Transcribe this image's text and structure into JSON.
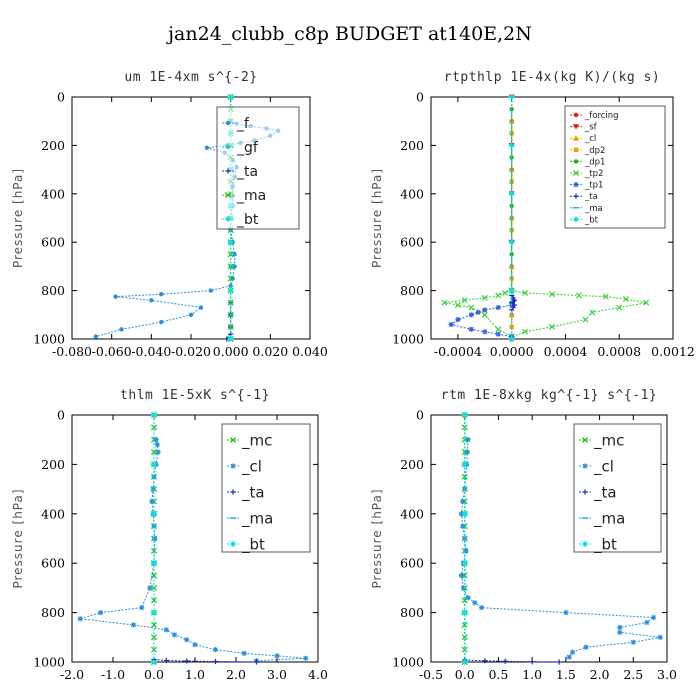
{
  "figure_title": "jan24_clubb_c8p  BUDGET at140E,2N",
  "chart_data": [
    {
      "type": "line",
      "title": "um  1E-4xm s^{-2}",
      "ylabel": "Pressure [hPa]",
      "xlim": [
        -0.08,
        0.04
      ],
      "ylim": [
        1000,
        0
      ],
      "xticks": [
        "-0.080",
        "-0.060",
        "-0.040",
        "-0.020",
        "0.000",
        "0.020",
        "0.040"
      ],
      "yticks": [
        "0",
        "200",
        "400",
        "600",
        "800",
        "1000"
      ],
      "legend_position": "top-right",
      "legend_font": "large",
      "series": [
        {
          "name": "_f",
          "color": "#2a8fe0",
          "marker": "circle",
          "x": [
            0,
            0.003,
            0.01,
            0.018,
            0.024,
            0.02,
            0.012,
            0.005,
            -0.002,
            -0.012,
            -0.003,
            0.001,
            0.003,
            0.002,
            0.001,
            0.001,
            0.001,
            0,
            0,
            0.001,
            0.002,
            0.002,
            0.001,
            0,
            -0.01,
            -0.035,
            -0.058,
            -0.04,
            -0.015,
            -0.02,
            -0.035,
            -0.055,
            -0.068
          ],
          "y": [
            100,
            110,
            120,
            130,
            140,
            160,
            180,
            190,
            200,
            210,
            230,
            260,
            290,
            330,
            370,
            410,
            450,
            500,
            550,
            600,
            650,
            700,
            750,
            780,
            800,
            815,
            825,
            840,
            870,
            900,
            930,
            960,
            990
          ]
        },
        {
          "name": "_gf",
          "color": "#22c8d0",
          "marker": "circle",
          "x": [
            0,
            0,
            0,
            0,
            0,
            0,
            0,
            0,
            0,
            0,
            0,
            0
          ],
          "y": [
            0,
            100,
            200,
            300,
            400,
            500,
            600,
            700,
            800,
            900,
            950,
            1000
          ]
        },
        {
          "name": "_ta",
          "color": "#1a30b0",
          "marker": "plus",
          "x": [
            0,
            0,
            0,
            0,
            -0.002
          ],
          "y": [
            850,
            900,
            950,
            980,
            1000
          ]
        },
        {
          "name": "_ma",
          "color": "#1ec01e",
          "marker": "x",
          "x": [
            0,
            0,
            0,
            0,
            0,
            0,
            0,
            0,
            0,
            0,
            0,
            0,
            0,
            0,
            0,
            0,
            0,
            0,
            0,
            0,
            0
          ],
          "y": [
            0,
            50,
            100,
            150,
            200,
            250,
            300,
            350,
            400,
            450,
            500,
            550,
            600,
            650,
            700,
            750,
            800,
            850,
            900,
            950,
            1000
          ]
        },
        {
          "name": "_bt",
          "color": "#00e5e5",
          "marker": "diamond",
          "x": [
            0,
            0,
            0,
            0,
            0,
            0,
            0
          ],
          "y": [
            0,
            150,
            300,
            450,
            600,
            800,
            1000
          ]
        }
      ]
    },
    {
      "type": "line",
      "title": "rtpthlp  1E-4x(kg K)/(kg s)",
      "ylabel": "Pressure [hPa]",
      "xlim": [
        -0.0006,
        0.0012
      ],
      "ylim": [
        1000,
        0
      ],
      "xticks": [
        "-0.0004",
        "0.0000",
        "0.0004",
        "0.0008",
        "0.0012"
      ],
      "yticks": [
        "0",
        "200",
        "400",
        "600",
        "800",
        "1000"
      ],
      "legend_position": "top-right",
      "legend_font": "small",
      "series": [
        {
          "name": "_forcing",
          "color": "#e02020",
          "marker": "circle",
          "x": [
            0,
            0,
            0,
            0,
            0,
            0,
            0,
            0,
            0,
            0,
            0
          ],
          "y": [
            0,
            100,
            200,
            300,
            400,
            500,
            600,
            700,
            800,
            900,
            1000
          ]
        },
        {
          "name": "_sf",
          "color": "#e02020",
          "marker": "triangle-down",
          "x": [
            0,
            0,
            0,
            0,
            0,
            0
          ],
          "y": [
            0,
            200,
            400,
            600,
            800,
            1000
          ]
        },
        {
          "name": "_cl",
          "color": "#f0a000",
          "marker": "triangle-up",
          "x": [
            0,
            0,
            0,
            0,
            0,
            0
          ],
          "y": [
            100,
            300,
            500,
            700,
            900,
            1000
          ]
        },
        {
          "name": "_dp2",
          "color": "#f0a000",
          "marker": "square",
          "x": [
            0,
            0,
            0,
            0,
            0
          ],
          "y": [
            150,
            350,
            550,
            750,
            950
          ]
        },
        {
          "name": "_dp1",
          "color": "#20b020",
          "marker": "circle",
          "x": [
            0,
            0,
            0,
            0,
            0
          ],
          "y": [
            50,
            250,
            450,
            650,
            850
          ]
        },
        {
          "name": "_tp2",
          "color": "#40d040",
          "marker": "x",
          "x": [
            0,
            0.0001,
            0.0003,
            0.0005,
            0.0007,
            0.00085,
            0.001,
            0.0008,
            0.0006,
            0.00055,
            0.0003,
            0.0001,
            0,
            -0.0001,
            -0.0002,
            -0.0003,
            -0.0004,
            -0.0005,
            -0.00035,
            -0.0002,
            -0.0001,
            -5e-05,
            0
          ],
          "y": [
            800,
            810,
            815,
            820,
            825,
            835,
            850,
            870,
            890,
            920,
            950,
            970,
            990,
            960,
            900,
            870,
            860,
            850,
            840,
            830,
            820,
            810,
            800
          ]
        },
        {
          "name": "_tp1",
          "color": "#3060e0",
          "marker": "star",
          "x": [
            0,
            -0.0001,
            -0.0002,
            -0.00025,
            -0.0003,
            -0.0004,
            -0.00045,
            -0.0003,
            -0.0002,
            -0.0001,
            0
          ],
          "y": [
            860,
            870,
            880,
            890,
            900,
            920,
            940,
            960,
            970,
            980,
            990
          ]
        },
        {
          "name": "_ta",
          "color": "#2020c0",
          "marker": "plus",
          "x": [
            0,
            1e-05,
            2e-05,
            1e-05,
            0,
            2e-05,
            1e-05,
            0
          ],
          "y": [
            820,
            830,
            840,
            845,
            850,
            860,
            870,
            880
          ]
        },
        {
          "name": "_ma",
          "color": "#20a0e0",
          "marker": "dash",
          "x": [
            0,
            0,
            0,
            0,
            0,
            0
          ],
          "y": [
            0,
            200,
            400,
            600,
            800,
            1000
          ]
        },
        {
          "name": "_bt",
          "color": "#00e5e5",
          "marker": "diamond",
          "x": [
            0,
            0,
            0,
            0,
            0,
            0
          ],
          "y": [
            0,
            200,
            400,
            600,
            800,
            1000
          ]
        }
      ]
    },
    {
      "type": "line",
      "title": "thlm  1E-5xK s^{-1}",
      "ylabel": "Pressure [hPa]",
      "xlim": [
        -2.0,
        4.0
      ],
      "ylim": [
        1000,
        0
      ],
      "xticks": [
        "-2.0",
        "-1.0",
        "0.0",
        "1.0",
        "2.0",
        "3.0",
        "4.0"
      ],
      "yticks": [
        "0",
        "200",
        "400",
        "600",
        "800",
        "1000"
      ],
      "legend_position": "top-right",
      "legend_font": "large",
      "series": [
        {
          "name": "_mc",
          "color": "#1ec01e",
          "marker": "x",
          "x": [
            0,
            0,
            0,
            0,
            0,
            0,
            0,
            0,
            0,
            0,
            0,
            0,
            0,
            0,
            0,
            0,
            0,
            0,
            0,
            0,
            0
          ],
          "y": [
            0,
            50,
            100,
            150,
            200,
            250,
            300,
            350,
            400,
            450,
            500,
            550,
            600,
            650,
            700,
            750,
            800,
            850,
            900,
            950,
            1000
          ]
        },
        {
          "name": "_cl",
          "color": "#2a8fe0",
          "marker": "star",
          "x": [
            0.05,
            0.08,
            0.1,
            0.05,
            0.0,
            -0.02,
            -0.05,
            -0.02,
            0,
            0.02,
            0.0,
            -0.1,
            -0.3,
            -1.3,
            -1.8,
            -0.5,
            0.3,
            0.5,
            0.8,
            1.0,
            1.5,
            2.2,
            3.0,
            3.7,
            2.5
          ],
          "y": [
            100,
            120,
            150,
            200,
            250,
            300,
            350,
            400,
            450,
            500,
            600,
            700,
            780,
            800,
            825,
            850,
            870,
            890,
            910,
            930,
            950,
            965,
            975,
            985,
            995
          ]
        },
        {
          "name": "_ta",
          "color": "#1a30b0",
          "marker": "plus",
          "x": [
            0,
            0.3,
            0.8,
            1.5,
            2.5
          ],
          "y": [
            990,
            994,
            996,
            998,
            1000
          ]
        },
        {
          "name": "_ma",
          "color": "#20a0e0",
          "marker": "dash",
          "x": [
            0,
            0,
            0,
            0,
            0,
            0
          ],
          "y": [
            0,
            200,
            400,
            600,
            800,
            1000
          ]
        },
        {
          "name": "_bt",
          "color": "#00e5e5",
          "marker": "diamond",
          "x": [
            0,
            0,
            0,
            0,
            0,
            0
          ],
          "y": [
            0,
            200,
            400,
            600,
            800,
            1000
          ]
        }
      ]
    },
    {
      "type": "line",
      "title": "rtm  1E-8xkg kg^{-1} s^{-1}",
      "ylabel": "Pressure [hPa]",
      "xlim": [
        -0.5,
        3.0
      ],
      "ylim": [
        1000,
        0
      ],
      "xticks": [
        "-0.5",
        "0.0",
        "0.5",
        "1.0",
        "1.5",
        "2.0",
        "2.5",
        "3.0"
      ],
      "yticks": [
        "0",
        "200",
        "400",
        "600",
        "800",
        "1000"
      ],
      "legend_position": "top-right",
      "legend_font": "large",
      "series": [
        {
          "name": "_mc",
          "color": "#1ec01e",
          "marker": "x",
          "x": [
            0,
            0,
            0,
            0,
            0,
            0,
            0,
            0,
            0,
            0,
            0,
            0,
            0,
            0,
            0,
            0,
            0,
            0,
            0,
            0,
            0
          ],
          "y": [
            0,
            50,
            100,
            150,
            200,
            250,
            300,
            350,
            400,
            450,
            500,
            550,
            600,
            650,
            700,
            750,
            800,
            850,
            900,
            950,
            1000
          ]
        },
        {
          "name": "_cl",
          "color": "#2a8fe0",
          "marker": "star",
          "x": [
            0.05,
            0.04,
            0.03,
            0.0,
            -0.03,
            -0.05,
            -0.03,
            0.0,
            0.02,
            -0.02,
            -0.05,
            -0.02,
            0.05,
            0.15,
            0.25,
            1.5,
            2.8,
            2.7,
            2.3,
            2.3,
            2.9,
            2.5,
            1.8,
            1.6,
            1.55
          ],
          "y": [
            100,
            150,
            200,
            300,
            350,
            400,
            450,
            500,
            550,
            600,
            650,
            700,
            740,
            760,
            780,
            800,
            820,
            840,
            860,
            880,
            900,
            920,
            940,
            960,
            980
          ]
        },
        {
          "name": "_ta",
          "color": "#1a30b0",
          "marker": "plus",
          "x": [
            0,
            0.3,
            0.6,
            1.0,
            1.4
          ],
          "y": [
            992,
            995,
            997,
            999,
            1000
          ]
        },
        {
          "name": "_ma",
          "color": "#20a0e0",
          "marker": "dash",
          "x": [
            0,
            0,
            0,
            0,
            0,
            0
          ],
          "y": [
            0,
            200,
            400,
            600,
            800,
            1000
          ]
        },
        {
          "name": "_bt",
          "color": "#00e5e5",
          "marker": "diamond",
          "x": [
            0,
            0,
            0,
            0,
            0,
            0
          ],
          "y": [
            0,
            200,
            400,
            600,
            800,
            1000
          ]
        }
      ]
    }
  ]
}
